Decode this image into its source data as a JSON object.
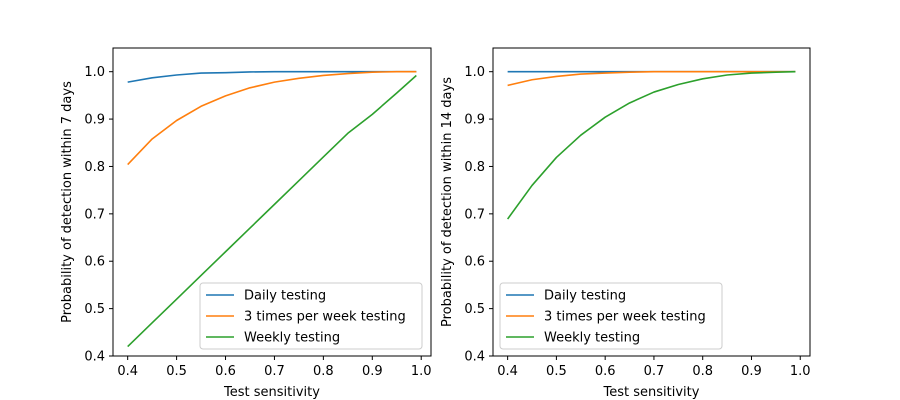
{
  "chart_data": [
    {
      "type": "line",
      "xlabel": "Test sensitivity",
      "ylabel": "Probability of detection within 7 days",
      "xlim": [
        0.37,
        1.02
      ],
      "ylim": [
        0.4,
        1.05
      ],
      "xticks": [
        "0.4",
        "0.5",
        "0.6",
        "0.7",
        "0.8",
        "0.9",
        "1.0"
      ],
      "yticks": [
        "0.4",
        "0.5",
        "0.6",
        "0.7",
        "0.8",
        "0.9",
        "1.0"
      ],
      "legend_position": "bottom-right",
      "grid": false,
      "x": [
        0.4,
        0.45,
        0.5,
        0.55,
        0.6,
        0.65,
        0.7,
        0.75,
        0.8,
        0.85,
        0.9,
        0.95,
        0.99
      ],
      "series": [
        {
          "name": "Daily testing",
          "color": "#1f77b4",
          "values": [
            0.978,
            0.987,
            0.993,
            0.997,
            0.998,
            0.9995,
            1.0,
            1.0,
            1.0,
            1.0,
            1.0,
            1.0,
            1.0
          ]
        },
        {
          "name": "3 times per week testing",
          "color": "#ff7f0e",
          "values": [
            0.804,
            0.858,
            0.897,
            0.927,
            0.949,
            0.966,
            0.978,
            0.986,
            0.992,
            0.996,
            0.999,
            1.0,
            1.0
          ]
        },
        {
          "name": "Weekly testing",
          "color": "#2ca02c",
          "values": [
            0.42,
            0.47,
            0.52,
            0.57,
            0.62,
            0.67,
            0.72,
            0.77,
            0.82,
            0.87,
            0.91,
            0.955,
            0.992
          ]
        }
      ]
    },
    {
      "type": "line",
      "xlabel": "Test sensitivity",
      "ylabel": "Probability of detection within 14 days",
      "xlim": [
        0.37,
        1.02
      ],
      "ylim": [
        0.4,
        1.05
      ],
      "xticks": [
        "0.4",
        "0.5",
        "0.6",
        "0.7",
        "0.8",
        "0.9",
        "1.0"
      ],
      "yticks": [
        "0.4",
        "0.5",
        "0.6",
        "0.7",
        "0.8",
        "0.9",
        "1.0"
      ],
      "legend_position": "bottom-left",
      "grid": false,
      "x": [
        0.4,
        0.45,
        0.5,
        0.55,
        0.6,
        0.65,
        0.7,
        0.75,
        0.8,
        0.85,
        0.9,
        0.95,
        0.99
      ],
      "series": [
        {
          "name": "Daily testing",
          "color": "#1f77b4",
          "values": [
            1.0,
            1.0,
            1.0,
            1.0,
            1.0,
            1.0,
            1.0,
            1.0,
            1.0,
            1.0,
            1.0,
            1.0,
            1.0
          ]
        },
        {
          "name": "3 times per week testing",
          "color": "#ff7f0e",
          "values": [
            0.971,
            0.983,
            0.99,
            0.995,
            0.997,
            0.999,
            1.0,
            1.0,
            1.0,
            1.0,
            1.0,
            1.0,
            1.0
          ]
        },
        {
          "name": "Weekly testing",
          "color": "#2ca02c",
          "values": [
            0.689,
            0.76,
            0.819,
            0.866,
            0.904,
            0.934,
            0.957,
            0.973,
            0.985,
            0.993,
            0.997,
            0.999,
            1.0
          ]
        }
      ]
    }
  ]
}
